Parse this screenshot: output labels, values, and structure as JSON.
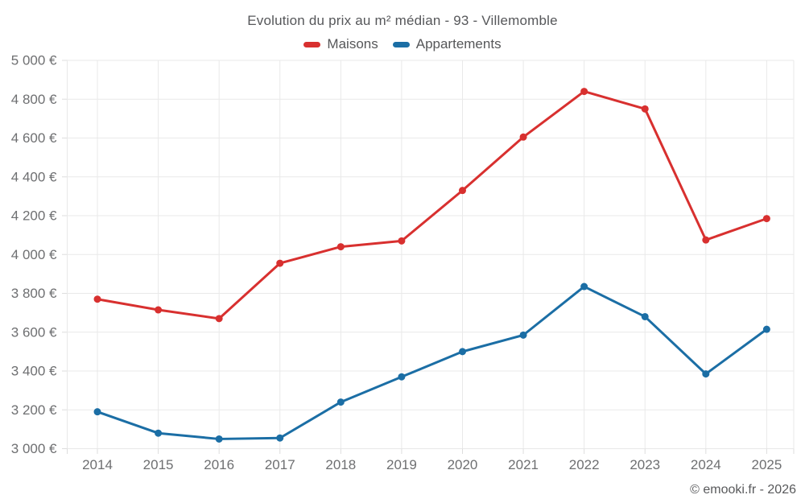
{
  "chart_data": {
    "type": "line",
    "title": "Evolution du prix au m² médian - 93 - Villemomble",
    "x": [
      2014,
      2015,
      2016,
      2017,
      2018,
      2019,
      2020,
      2021,
      2022,
      2023,
      2024,
      2025
    ],
    "series": [
      {
        "name": "Maisons",
        "color": "#d8302f",
        "values": [
          3770,
          3715,
          3670,
          3955,
          4040,
          4070,
          4330,
          4605,
          4840,
          4750,
          4075,
          4185
        ]
      },
      {
        "name": "Appartements",
        "color": "#1b6ea5",
        "values": [
          3190,
          3080,
          3050,
          3055,
          3240,
          3370,
          3500,
          3585,
          3835,
          3680,
          3385,
          3615
        ]
      }
    ],
    "ylim": [
      3000,
      5000
    ],
    "ytick_step": 200,
    "ytick_suffix": " €",
    "grid": true,
    "legend_position": "top",
    "gridline_color": "#e9e9e9",
    "tick_color": "#dddddd"
  },
  "credit": "© emooki.fr - 2026"
}
